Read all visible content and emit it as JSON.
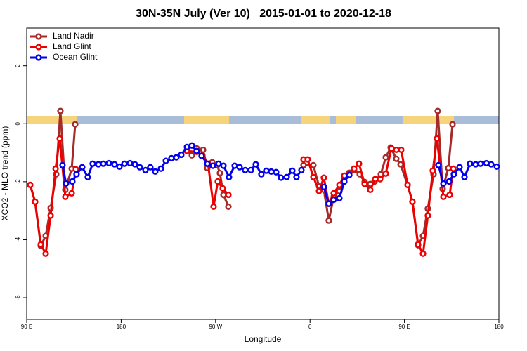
{
  "chart_data": {
    "type": "line",
    "title": "30N-35N July (Ver 10)   2015-01-01 to 2020-12-18",
    "xlabel": "Longitude",
    "ylabel": "XCO2 - MLO trend (ppm)",
    "xlim": [
      90,
      540
    ],
    "ylim": [
      -6.75,
      3.3
    ],
    "xticks": [
      {
        "value": 90,
        "label": "90 E"
      },
      180,
      {
        "value": 270,
        "label": "90 W"
      },
      {
        "value": 360,
        "label": "0"
      },
      {
        "value": 450,
        "label": "90 E"
      },
      {
        "value": 540,
        "label": "180"
      }
    ],
    "yticks": [
      -6,
      -4,
      -2,
      0,
      2
    ],
    "grid": false,
    "legend": "top-left",
    "series": [
      {
        "name": "Land Nadir",
        "color": "#a52a2a",
        "x": [
          93.3,
          98.0,
          103.4,
          108.1,
          112.8,
          118.1,
          122.1,
          126.8,
          132.9,
          136.2,
          null,
          242.7,
          247.4,
          252.0,
          258.1,
          262.1,
          266.8,
          271.5,
          274.1,
          277.5,
          282.2,
          null,
          353.8,
          363.2,
          368.6,
          373.2,
          377.9,
          382.6,
          388.0,
          392.7,
          397.4,
          402.0,
          407.4,
          412.1,
          417.4,
          421.5,
          427.5,
          432.2,
          436.9,
          442.2,
          446.3,
          453.0,
          457.6,
          463.0,
          467.7,
          472.3,
          477.7,
          481.7,
          486.4,
          491.8,
          495.8
        ],
        "values": [
          -2.11,
          -2.69,
          -4.21,
          -3.87,
          -2.91,
          -1.74,
          0.44,
          -2.28,
          -1.55,
          -0.02,
          null,
          -0.9,
          -1.09,
          -0.85,
          -0.9,
          -1.53,
          -1.33,
          -1.43,
          -1.7,
          -2.45,
          -2.86,
          null,
          -1.43,
          -1.43,
          -2.16,
          -2.28,
          -3.34,
          -2.52,
          -2.33,
          -1.84,
          -1.69,
          -1.6,
          -1.74,
          -2.01,
          -2.08,
          -1.99,
          -1.74,
          -1.16,
          -0.82,
          -1.21,
          -1.4,
          -2.11,
          -2.69,
          -4.19,
          -3.87,
          -2.93,
          -1.74,
          0.44,
          -2.25,
          -1.53,
          -0.02
        ]
      },
      {
        "name": "Land Glint",
        "color": "#ee0000",
        "x": [
          93.3,
          98.0,
          103.4,
          108.1,
          112.8,
          117.5,
          121.5,
          126.8,
          132.9,
          136.9,
          null,
          242.7,
          252.0,
          257.4,
          262.8,
          268.1,
          272.1,
          276.8,
          282.2,
          null,
          353.8,
          357.8,
          363.2,
          368.6,
          373.2,
          377.9,
          382.6,
          388.0,
          392.7,
          397.4,
          402.0,
          406.7,
          412.1,
          417.4,
          422.1,
          426.8,
          432.2,
          437.6,
          442.2,
          446.9,
          453.0,
          457.6,
          463.0,
          467.7,
          472.3,
          477.0,
          481.0,
          487.1,
          493.1,
          496.5
        ],
        "values": [
          -2.11,
          -2.69,
          -4.16,
          -4.48,
          -3.17,
          -1.55,
          -0.51,
          -2.52,
          -2.4,
          -1.57,
          null,
          -0.94,
          -0.97,
          -1.09,
          -1.38,
          -2.86,
          -1.99,
          -2.23,
          -2.45,
          null,
          -1.23,
          -1.23,
          -1.84,
          -2.32,
          -1.86,
          -2.76,
          -2.4,
          -2.11,
          -1.79,
          -1.74,
          -1.55,
          -1.38,
          -2.08,
          -2.28,
          -1.91,
          -1.91,
          -1.72,
          -0.85,
          -0.9,
          -0.9,
          -2.11,
          -2.69,
          -4.16,
          -4.48,
          -3.17,
          -1.62,
          -0.51,
          -2.52,
          -2.45,
          -1.55
        ]
      },
      {
        "name": "Ocean Glint",
        "color": "#0000ee",
        "x": [
          124.1,
          127.5,
          133.5,
          137.5,
          142.9,
          148.2,
          152.9,
          158.3,
          162.9,
          168.3,
          173.7,
          178.4,
          183.1,
          188.4,
          193.1,
          197.8,
          203.2,
          207.8,
          212.5,
          217.9,
          222.6,
          227.9,
          232.6,
          237.3,
          242.7,
          247.4,
          252.0,
          256.7,
          262.1,
          267.4,
          272.8,
          277.5,
          282.8,
          288.2,
          292.9,
          298.2,
          303.6,
          308.3,
          313.6,
          318.3,
          323.0,
          327.7,
          332.4,
          337.8,
          343.1,
          347.1,
          351.8,
          null,
          373.2,
          377.9,
          382.6,
          388.0,
          392.7,
          397.4,
          null,
          482.4,
          487.1,
          492.5,
          497.1,
          502.5,
          507.2,
          512.5,
          517.9,
          522.6,
          528.0,
          532.6,
          538.0
        ],
        "values": [
          -1.43,
          -2.06,
          -1.99,
          -1.74,
          -1.5,
          -1.84,
          -1.38,
          -1.4,
          -1.38,
          -1.36,
          -1.4,
          -1.48,
          -1.38,
          -1.36,
          -1.4,
          -1.5,
          -1.6,
          -1.5,
          -1.65,
          -1.55,
          -1.28,
          -1.19,
          -1.16,
          -1.07,
          -0.8,
          -0.75,
          -0.94,
          -1.11,
          -1.38,
          -1.45,
          -1.38,
          -1.45,
          -1.84,
          -1.45,
          -1.5,
          -1.6,
          -1.6,
          -1.4,
          -1.74,
          -1.62,
          -1.65,
          -1.67,
          -1.86,
          -1.84,
          -1.62,
          -1.84,
          -1.6,
          null,
          -2.18,
          -2.76,
          -2.62,
          -2.57,
          -1.99,
          -1.77,
          null,
          -1.43,
          -2.06,
          -1.99,
          -1.74,
          -1.5,
          -1.84,
          -1.38,
          -1.4,
          -1.38,
          -1.36,
          -1.4,
          -1.48
        ]
      }
    ]
  }
}
